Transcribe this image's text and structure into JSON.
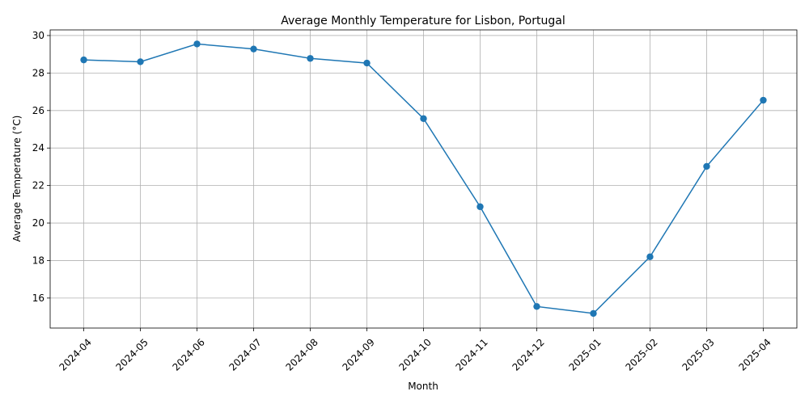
{
  "chart_data": {
    "type": "line",
    "title": "Average Monthly Temperature for Lisbon, Portugal",
    "xlabel": "Month",
    "ylabel": "Average Temperature (°C)",
    "categories": [
      "2024-04",
      "2024-05",
      "2024-06",
      "2024-07",
      "2024-08",
      "2024-09",
      "2024-10",
      "2024-11",
      "2024-12",
      "2025-01",
      "2025-02",
      "2025-03",
      "2025-04"
    ],
    "values": [
      28.7,
      28.6,
      29.55,
      29.28,
      28.78,
      28.53,
      25.57,
      20.87,
      15.55,
      15.18,
      18.2,
      23.02,
      26.55
    ],
    "ylim": [
      14.4,
      30.3
    ],
    "yticks": [
      16,
      18,
      20,
      22,
      24,
      26,
      28,
      30
    ],
    "grid": true,
    "line_color": "#1f77b4",
    "marker": "circle"
  }
}
